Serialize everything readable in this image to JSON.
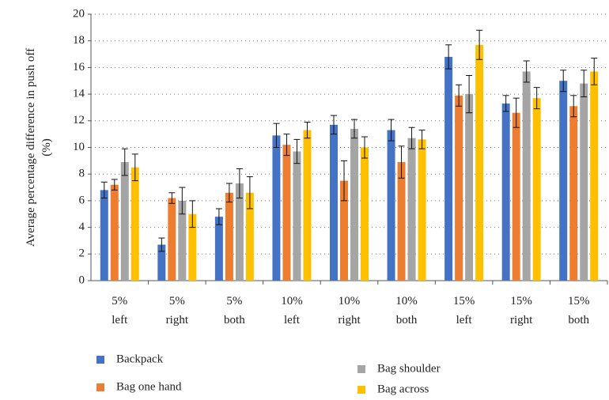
{
  "chart_data": {
    "type": "bar",
    "y_label": [
      "Average percentage difference in push off",
      "(%)"
    ],
    "categories": [
      "5%\nleft",
      "5%\nright",
      "5%\nboth",
      "10%\nleft",
      "10%\nright",
      "10%\nboth",
      "15%\nleft",
      "15%\nright",
      "15%\nboth"
    ],
    "series": [
      {
        "name": "Backpack",
        "color": "#4472c4",
        "values": [
          6.8,
          2.7,
          4.8,
          10.9,
          11.7,
          11.3,
          16.8,
          13.3,
          15.0
        ],
        "errors": [
          0.6,
          0.5,
          0.6,
          0.9,
          0.7,
          0.8,
          0.9,
          0.6,
          0.8
        ]
      },
      {
        "name": "Bag one hand",
        "color": "#ed7d31",
        "values": [
          7.2,
          6.2,
          6.6,
          10.2,
          7.5,
          8.9,
          13.9,
          12.6,
          13.1
        ],
        "errors": [
          0.4,
          0.4,
          0.7,
          0.8,
          1.5,
          1.2,
          0.8,
          1.1,
          0.8
        ]
      },
      {
        "name": "Bag shoulder",
        "color": "#a5a5a5",
        "values": [
          8.9,
          6.0,
          7.3,
          9.7,
          11.4,
          10.7,
          14.0,
          15.7,
          14.8
        ],
        "errors": [
          1.0,
          1.0,
          1.1,
          0.9,
          0.7,
          0.8,
          1.4,
          0.8,
          1.0
        ]
      },
      {
        "name": "Bag across",
        "color": "#ffc000",
        "values": [
          8.5,
          5.0,
          6.6,
          11.3,
          10.0,
          10.6,
          17.7,
          13.7,
          15.7
        ],
        "errors": [
          1.0,
          1.0,
          1.2,
          0.6,
          0.8,
          0.7,
          1.1,
          0.8,
          1.0
        ]
      }
    ],
    "ylim": [
      0,
      20
    ],
    "yticks": [
      0,
      2,
      4,
      6,
      8,
      10,
      12,
      14,
      16,
      18,
      20
    ],
    "grid": true
  }
}
